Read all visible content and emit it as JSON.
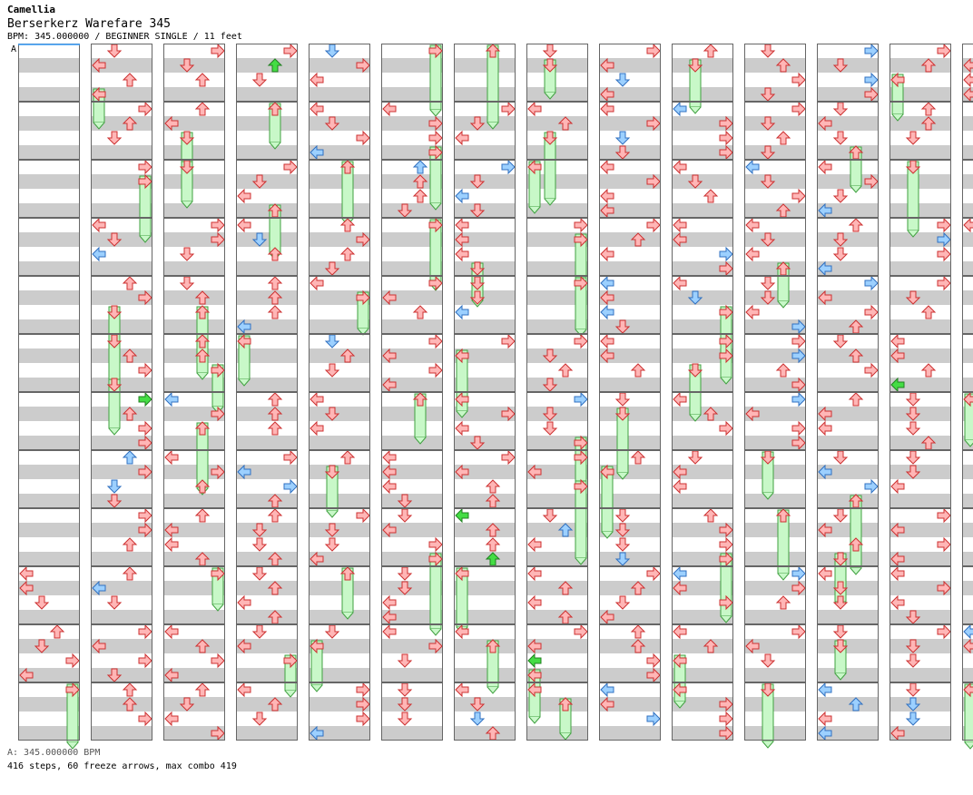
{
  "header": {
    "artist": "Camellia",
    "title": "Berserkerz Warefare 345",
    "info": "BPM: 345.000000 / BEGINNER SINGLE / 11 feet"
  },
  "bpm_marker": {
    "label": "A",
    "note": "A: 345.000000 BPM"
  },
  "footer": {
    "summary": "416 steps, 60 freeze arrows, max combo 419"
  },
  "chart_data": {
    "type": "step-chart",
    "measures_per_column": 12,
    "columns": 14,
    "beats_per_measure": 4,
    "lanes": [
      "left",
      "down",
      "up",
      "right"
    ],
    "colors": {
      "note_red_fill": "#ffb6b6",
      "note_red_stroke": "#cc3030",
      "note_blue_fill": "#9cd0ff",
      "note_blue_stroke": "#3070c0",
      "note_green_fill": "#44dd44",
      "note_green_stroke": "#208020",
      "note_purple_fill": "#e8b0ff",
      "freeze_fill": "#c8f8c8",
      "freeze_stroke": "#40a040",
      "stripe": "#cccccc"
    },
    "totals": {
      "steps": 416,
      "freeze_arrows": 60,
      "max_combo": 419
    }
  }
}
